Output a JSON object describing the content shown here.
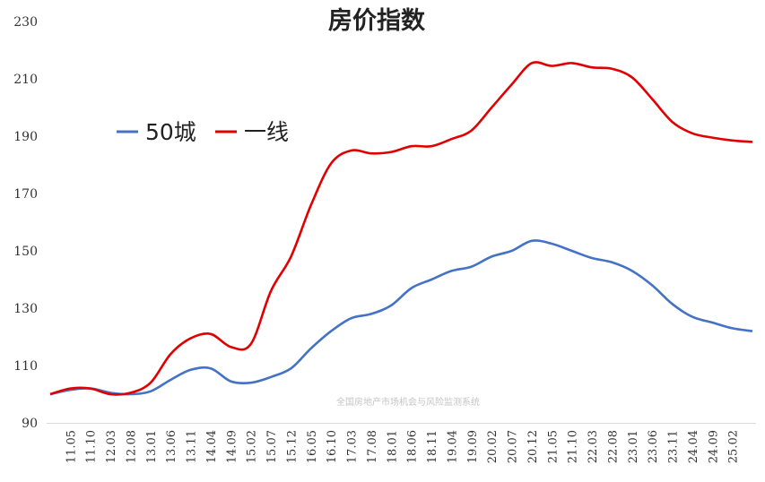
{
  "chart_data": {
    "type": "line",
    "title": "房价指数",
    "xlabel": "",
    "ylabel": "",
    "ylim": [
      90,
      230
    ],
    "yticks": [
      "90",
      "110",
      "130",
      "150",
      "170",
      "190",
      "210",
      "230"
    ],
    "xticks": [
      "11.05",
      "11.10",
      "12.03",
      "12.08",
      "13.01",
      "13.06",
      "13.11",
      "14.04",
      "14.09",
      "15.02",
      "15.07",
      "15.12",
      "16.05",
      "16.10",
      "17.03",
      "17.08",
      "18.01",
      "18.06",
      "18.11",
      "19.04",
      "19.09",
      "20.02",
      "20.07",
      "20.12",
      "21.05",
      "21.10",
      "22.03",
      "22.08",
      "23.01",
      "23.06",
      "23.11",
      "24.04",
      "24.09",
      "25.02"
    ],
    "grid": false,
    "legend_position": "upper-left",
    "watermark": "全国房地产市场机会与风险监测系统",
    "x": [
      "11.01",
      "11.05",
      "11.10",
      "12.03",
      "12.08",
      "13.01",
      "13.06",
      "13.11",
      "14.04",
      "14.09",
      "15.02",
      "15.07",
      "15.12",
      "16.05",
      "16.10",
      "17.03",
      "17.08",
      "18.01",
      "18.06",
      "18.11",
      "19.04",
      "19.09",
      "20.02",
      "20.07",
      "20.12",
      "21.05",
      "21.10",
      "22.03",
      "22.08",
      "23.01",
      "23.06",
      "23.11",
      "24.04",
      "24.09",
      "25.02",
      "25.05"
    ],
    "series": [
      {
        "name": "50城",
        "color": "#4472c4",
        "values": [
          100,
          101.5,
          102,
          100.5,
          100,
          101,
          105,
          108.5,
          109,
          104.5,
          104,
          106,
          109,
          116,
          122,
          126.5,
          128,
          131,
          137,
          140,
          143,
          144.5,
          148,
          150,
          153.5,
          152.5,
          150,
          147.5,
          146,
          143,
          138,
          131.5,
          127,
          125,
          123,
          122
        ]
      },
      {
        "name": "一线",
        "color": "#e00000",
        "values": [
          100,
          102,
          102,
          100,
          100.5,
          104,
          114,
          119.5,
          121,
          116.5,
          117.5,
          136,
          148,
          166,
          180.5,
          185,
          184,
          184.5,
          186.5,
          186.5,
          189,
          192,
          200,
          208,
          215.5,
          214.5,
          215.5,
          214,
          213.5,
          210.5,
          203,
          195,
          191,
          189.5,
          188.5,
          188
        ]
      }
    ]
  }
}
